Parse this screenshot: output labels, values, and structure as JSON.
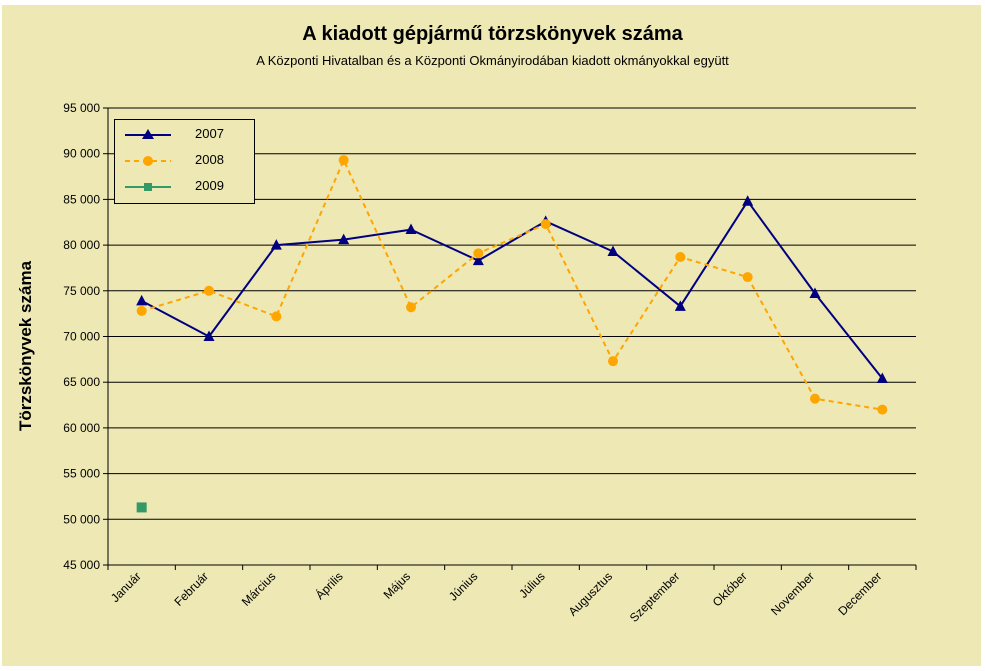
{
  "chart_data": {
    "type": "line",
    "title": "A  kiadott gépjármű  törzskönyvek száma",
    "subtitle": "A Központi Hivatalban és a Központi Okmányirodában kiadott okmányokkal együtt",
    "xlabel": "",
    "ylabel": "Törzskönyvek száma",
    "ylim": [
      45000,
      95000
    ],
    "ytick_step": 5000,
    "yticks": [
      "45 000",
      "50 000",
      "55 000",
      "60 000",
      "65 000",
      "70 000",
      "75 000",
      "80 000",
      "85 000",
      "90 000",
      "95 000"
    ],
    "grid": "horizontal",
    "legend": "top-left",
    "categories": [
      "Január",
      "Február",
      "Március",
      "Április",
      "Május",
      "Június",
      "Július",
      "Augusztus",
      "Szeptember",
      "Október",
      "November",
      "December"
    ],
    "series": [
      {
        "name": "2007",
        "color": "#000080",
        "marker": "triangle",
        "style": "solid",
        "values": [
          73900,
          70000,
          80000,
          80600,
          81700,
          78300,
          82600,
          79300,
          73300,
          84800,
          74700,
          65400
        ]
      },
      {
        "name": "2008",
        "color": "#FFA500",
        "marker": "circle",
        "style": "dashed",
        "values": [
          72800,
          75000,
          72200,
          89300,
          73200,
          79100,
          82300,
          67300,
          78700,
          76500,
          63200,
          62000
        ]
      },
      {
        "name": "2009",
        "color": "#339966",
        "marker": "square",
        "style": "solid",
        "values": [
          51300,
          null,
          null,
          null,
          null,
          null,
          null,
          null,
          null,
          null,
          null,
          null
        ]
      }
    ]
  },
  "colors": {
    "background": "#EEE8B4",
    "gridline": "#000000",
    "text": "#000000"
  }
}
